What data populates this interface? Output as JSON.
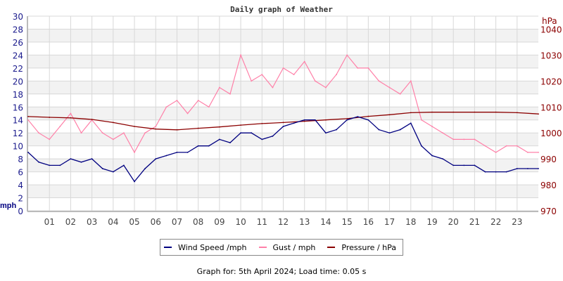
{
  "chart_data": {
    "type": "line",
    "title": "Daily graph of Weather",
    "left_axis": {
      "unit_label": "mph",
      "ylim": [
        0,
        30
      ],
      "ticks": [
        0,
        2,
        4,
        6,
        8,
        10,
        12,
        14,
        16,
        18,
        20,
        22,
        24,
        26,
        28,
        30
      ]
    },
    "right_axis": {
      "unit_label": "hPa",
      "ylim": [
        970,
        1045
      ],
      "ticks": [
        970,
        980,
        990,
        1000,
        1010,
        1020,
        1030,
        1040
      ]
    },
    "x_axis": {
      "range_hours": [
        0,
        24
      ],
      "tick_labels": [
        "01",
        "02",
        "03",
        "04",
        "05",
        "06",
        "07",
        "08",
        "09",
        "10",
        "11",
        "12",
        "13",
        "14",
        "15",
        "16",
        "17",
        "18",
        "19",
        "20",
        "21",
        "22",
        "23"
      ]
    },
    "grid": true,
    "legend_placement": "bottom",
    "series": [
      {
        "name": "Wind Speed /mph",
        "axis": "left",
        "color": "#000080",
        "x": [
          0,
          0.5,
          1,
          1.5,
          2,
          2.5,
          3,
          3.5,
          4,
          4.5,
          5,
          5.5,
          6,
          6.5,
          7,
          7.5,
          8,
          8.5,
          9,
          9.5,
          10,
          10.5,
          11,
          11.5,
          12,
          12.5,
          13,
          13.5,
          14,
          14.5,
          15,
          15.5,
          16,
          16.5,
          17,
          17.5,
          18,
          18.5,
          19,
          19.5,
          20,
          20.5,
          21,
          21.5,
          22,
          22.5,
          23,
          23.5,
          24
        ],
        "values": [
          9,
          7.5,
          7,
          7,
          8,
          7.5,
          8,
          6.5,
          6,
          7,
          4.5,
          6.5,
          8,
          8.5,
          9,
          9,
          10,
          10,
          11,
          10.5,
          12,
          12,
          11,
          11.5,
          13,
          13.5,
          14,
          14,
          12,
          12.5,
          14,
          14.5,
          14,
          12.5,
          12,
          12.5,
          13.5,
          10,
          8.5,
          8,
          7,
          7,
          7,
          6,
          6,
          6,
          6.5,
          6.5,
          6.5
        ]
      },
      {
        "name": "Gust / mph",
        "axis": "left",
        "color": "#ff80a8",
        "x": [
          0,
          0.5,
          1,
          1.5,
          2,
          2.5,
          3,
          3.5,
          4,
          4.5,
          5,
          5.5,
          6,
          6.5,
          7,
          7.5,
          8,
          8.5,
          9,
          9.5,
          10,
          10.5,
          11,
          11.5,
          12,
          12.5,
          13,
          13.5,
          14,
          14.5,
          15,
          15.5,
          16,
          16.5,
          17,
          17.5,
          18,
          18.5,
          19,
          19.5,
          20,
          20.5,
          21,
          21.5,
          22,
          22.5,
          23,
          23.5,
          24
        ],
        "values": [
          14,
          12,
          11,
          13,
          15,
          12,
          14,
          12,
          11,
          12,
          9,
          12,
          13,
          16,
          17,
          15,
          17,
          16,
          19,
          18,
          24,
          20,
          21,
          19,
          22,
          21,
          23,
          20,
          19,
          21,
          24,
          22,
          22,
          20,
          19,
          18,
          20,
          14,
          13,
          12,
          11,
          11,
          11,
          10,
          9,
          10,
          10,
          9,
          9
        ]
      },
      {
        "name": "Pressure / hPa",
        "axis": "right",
        "color": "#8b0000",
        "x": [
          0,
          1,
          2,
          3,
          4,
          5,
          6,
          7,
          8,
          9,
          10,
          11,
          12,
          13,
          14,
          15,
          16,
          17,
          18,
          19,
          20,
          21,
          22,
          23,
          24
        ],
        "values": [
          1006.3,
          1006,
          1005.8,
          1005.2,
          1004,
          1002.5,
          1001.5,
          1001.2,
          1001.8,
          1002.3,
          1003,
          1003.6,
          1004,
          1004.5,
          1005,
          1005.5,
          1006.4,
          1007,
          1007.8,
          1008,
          1008,
          1008,
          1008,
          1007.8,
          1007.3
        ]
      }
    ]
  },
  "footer": "Graph for: 5th April 2024; Load time: 0.05 s"
}
